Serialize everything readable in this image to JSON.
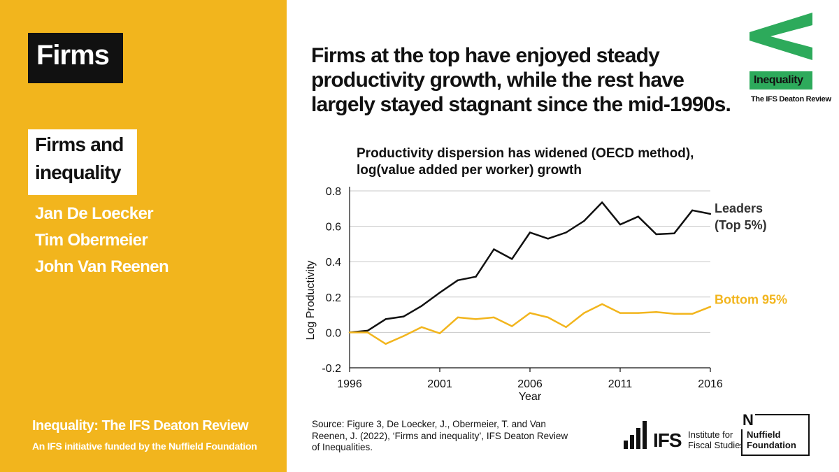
{
  "left_panel": {
    "tag": "Firms",
    "subtitle_lines": [
      "Firms and",
      "inequality"
    ],
    "authors": [
      "Jan De Loecker",
      "Tim Obermeier",
      "John Van Reenen"
    ],
    "footer_title": "Inequality: The IFS Deaton Review",
    "footer_sub": "An IFS initiative funded by the Nuffield Foundation"
  },
  "headline_lines": [
    "Firms at the top have enjoyed steady",
    "productivity growth,  while the rest have",
    "largely stayed stagnant since the mid-1990s."
  ],
  "source_text": "Source: Figure 3, De Loecker, J., Obermeier, T. and Van Reenen, J. (2022), ‘Firms and inequality’, IFS Deaton Review of Inequalities.",
  "logos": {
    "inequality_label": "Inequality",
    "inequality_sub": "The IFS Deaton Review",
    "ifs_short": "IFS",
    "ifs_name_lines": [
      "Institute for",
      "Fiscal Studies"
    ],
    "nuffield_letter": "N",
    "nuffield_lines": [
      "Nuffield",
      "Foundation"
    ]
  },
  "colors": {
    "accent_yellow": "#F2B51D",
    "leaders_line": "#111111",
    "bottom_line": "#F2B51D",
    "ineq_green": "#2DAA5B"
  },
  "chart_data": {
    "type": "line",
    "title_lines": [
      "Productivity dispersion has widened (OECD method),",
      "log(value added per worker) growth"
    ],
    "xlabel": "Year",
    "ylabel": "Log Productivity",
    "x": [
      1996,
      1997,
      1998,
      1999,
      2000,
      2001,
      2002,
      2003,
      2004,
      2005,
      2006,
      2007,
      2008,
      2009,
      2010,
      2011,
      2012,
      2013,
      2014,
      2015,
      2016
    ],
    "xticks": [
      1996,
      2001,
      2006,
      2011,
      2016
    ],
    "yticks": [
      -0.2,
      0.0,
      0.2,
      0.4,
      0.6,
      0.8
    ],
    "ytick_labels": [
      "-0.2",
      "0.0",
      "0.2",
      "0.4",
      "0.6",
      "0.8"
    ],
    "xlim": [
      1996,
      2016
    ],
    "ylim": [
      -0.2,
      0.8
    ],
    "grid": "horizontal",
    "series": [
      {
        "name": "Leaders (Top 5%)",
        "label_lines": [
          "Leaders",
          "(Top 5%)"
        ],
        "color": "#111111",
        "values": [
          0.0,
          0.01,
          0.075,
          0.09,
          0.15,
          0.225,
          0.295,
          0.315,
          0.47,
          0.415,
          0.565,
          0.53,
          0.565,
          0.63,
          0.735,
          0.61,
          0.655,
          0.555,
          0.56,
          0.69,
          0.67
        ]
      },
      {
        "name": "Bottom 95%",
        "label_lines": [
          "Bottom 95%"
        ],
        "color": "#F2B51D",
        "values": [
          0.0,
          0.0,
          -0.065,
          -0.02,
          0.03,
          -0.005,
          0.085,
          0.075,
          0.085,
          0.035,
          0.11,
          0.085,
          0.03,
          0.11,
          0.16,
          0.11,
          0.11,
          0.115,
          0.105,
          0.105,
          0.145
        ]
      }
    ]
  }
}
